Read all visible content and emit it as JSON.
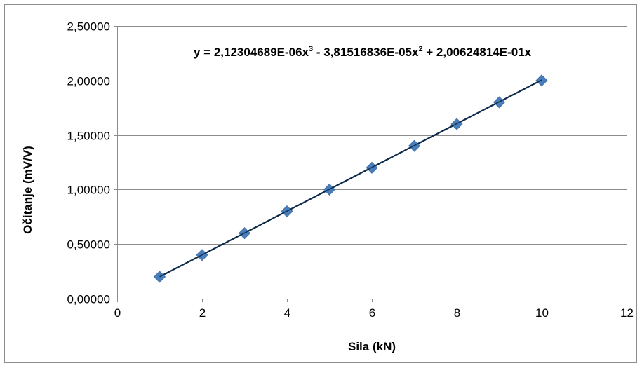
{
  "chart_data": {
    "type": "scatter",
    "title": "",
    "xlabel": "Sila (kN)",
    "ylabel": "Očitanje (mV/V)",
    "xlim": [
      0,
      12
    ],
    "ylim": [
      0,
      2.5
    ],
    "x_ticks": [
      0,
      2,
      4,
      6,
      8,
      10,
      12
    ],
    "x_tick_labels": [
      "0",
      "2",
      "4",
      "6",
      "8",
      "10",
      "12"
    ],
    "y_ticks": [
      0,
      0.5,
      1.0,
      1.5,
      2.0,
      2.5
    ],
    "y_tick_labels": [
      "0,00000",
      "0,50000",
      "1,00000",
      "1,50000",
      "2,00000",
      "2,50000"
    ],
    "grid": "horizontal",
    "legend": "none",
    "series": [
      {
        "x": [
          1,
          2,
          3,
          4,
          5,
          6,
          7,
          8,
          9,
          10
        ],
        "y": [
          0.2,
          0.4,
          0.6,
          0.8,
          1.0,
          1.2,
          1.4,
          1.6,
          1.8,
          2.0
        ],
        "marker": "diamond",
        "color": "#4a7ebb"
      }
    ],
    "trendline": {
      "type": "polynomial",
      "coefficients": {
        "a3": 2.12304689e-06,
        "a2": -3.81516836e-05,
        "a1": 0.200624814
      },
      "x_range": [
        1,
        10
      ],
      "color": "#0d2a4a",
      "equation_text": {
        "pre": "y = 2,12304689E-06x",
        "sup1": "3",
        "mid": " - 3,81516836E-05x",
        "sup2": "2",
        "post": " + 2,00624814E-01x"
      }
    }
  }
}
